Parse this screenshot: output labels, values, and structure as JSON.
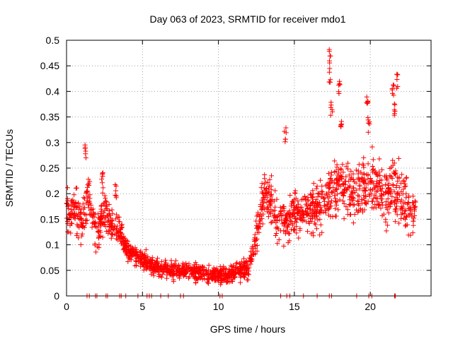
{
  "chart_data": {
    "type": "scatter",
    "title": "Day 063 of 2023, SRMTID for receiver mdo1",
    "xlabel": "GPS time / hours",
    "ylabel": "SRMTID / TECUs",
    "xlim": [
      0,
      24
    ],
    "ylim": [
      0,
      0.5
    ],
    "grid": true,
    "marker": "+",
    "series_color": "#ff0000",
    "x_ticks": [
      0,
      5,
      10,
      15,
      20
    ],
    "x_tick_labels": [
      "0",
      "5",
      "10",
      "15",
      "20"
    ],
    "y_ticks": [
      0,
      0.05,
      0.1,
      0.15,
      0.2,
      0.25,
      0.3,
      0.35,
      0.4,
      0.45,
      0.5
    ],
    "y_tick_labels": [
      "0",
      "0.05",
      "0.1",
      "0.15",
      "0.2",
      "0.25",
      "0.3",
      "0.35",
      "0.4",
      "0.45",
      "0.5"
    ],
    "trend": {
      "hours": [
        0,
        0.5,
        1,
        1.5,
        2,
        2.5,
        3,
        3.5,
        4,
        5,
        6,
        7,
        8,
        9,
        9.5,
        10,
        11,
        12,
        12.5,
        13,
        13.5,
        14,
        15,
        16,
        17,
        17.5,
        18,
        19,
        20,
        21,
        21.5,
        22,
        22.5,
        23
      ],
      "median_srmtid": [
        0.16,
        0.17,
        0.15,
        0.19,
        0.12,
        0.17,
        0.13,
        0.13,
        0.09,
        0.07,
        0.055,
        0.05,
        0.05,
        0.045,
        0.04,
        0.04,
        0.045,
        0.055,
        0.12,
        0.2,
        0.18,
        0.14,
        0.16,
        0.17,
        0.18,
        0.2,
        0.22,
        0.19,
        0.23,
        0.2,
        0.22,
        0.19,
        0.17,
        0.16
      ],
      "spread": [
        0.05,
        0.05,
        0.06,
        0.06,
        0.05,
        0.05,
        0.04,
        0.035,
        0.025,
        0.022,
        0.02,
        0.02,
        0.02,
        0.018,
        0.018,
        0.018,
        0.02,
        0.025,
        0.04,
        0.05,
        0.05,
        0.05,
        0.05,
        0.05,
        0.06,
        0.07,
        0.07,
        0.06,
        0.07,
        0.07,
        0.08,
        0.07,
        0.06,
        0.05
      ]
    },
    "peaks": [
      {
        "x": 1.25,
        "y": 0.3
      },
      {
        "x": 2.35,
        "y": 0.245
      },
      {
        "x": 3.25,
        "y": 0.22
      },
      {
        "x": 14.4,
        "y": 0.33
      },
      {
        "x": 17.35,
        "y": 0.485
      },
      {
        "x": 17.35,
        "y": 0.445
      },
      {
        "x": 17.45,
        "y": 0.38
      },
      {
        "x": 17.95,
        "y": 0.42
      },
      {
        "x": 18.05,
        "y": 0.35
      },
      {
        "x": 19.8,
        "y": 0.4
      },
      {
        "x": 19.9,
        "y": 0.35
      },
      {
        "x": 21.5,
        "y": 0.42
      },
      {
        "x": 21.75,
        "y": 0.435
      },
      {
        "x": 21.6,
        "y": 0.38
      }
    ],
    "zero_points": [
      1.35,
      1.5,
      1.9,
      2.0,
      2.6,
      2.7,
      3.5,
      3.6,
      3.9,
      4.7,
      5.3,
      5.45,
      5.6,
      6.2,
      6.7,
      7.5,
      7.7,
      10.1,
      10.25,
      14.1,
      14.5,
      14.7,
      15.6,
      16.5,
      17.3,
      17.45,
      19.1,
      19.9,
      20.1,
      21.6,
      21.65
    ]
  }
}
